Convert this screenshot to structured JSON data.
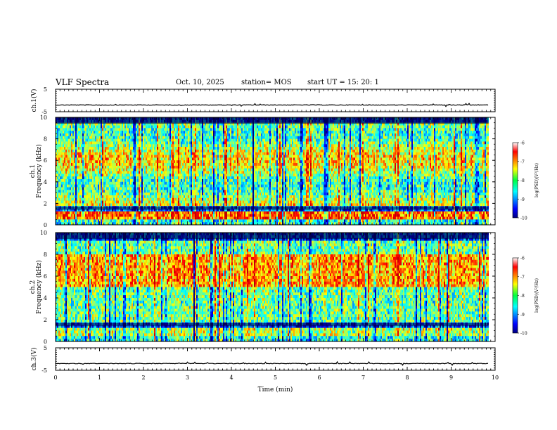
{
  "header": {
    "title": "VLF Spectra",
    "date": "Oct. 10, 2025",
    "station": "station= MOS",
    "start": "start  UT  =    15: 20: 1"
  },
  "chart_data": [
    {
      "type": "line",
      "name": "ch1-waveform",
      "ylabel": "ch.1(V)",
      "ylim": [
        -5,
        5
      ],
      "yticks": [
        "5",
        "-5"
      ],
      "baseline": -2
    },
    {
      "type": "heatmap",
      "name": "ch1-spectrogram",
      "ylabel": [
        "ch.1",
        "Frequency  (kHz)"
      ],
      "ylim": [
        0,
        10
      ],
      "yticks": [
        "0",
        "2",
        "4",
        "6",
        "8",
        "10"
      ],
      "xlim": [
        0,
        9.85
      ],
      "colorbar": {
        "label": "log(PSD)(V²/Hz)",
        "range": [
          -10,
          -6
        ],
        "ticks": [
          "-6",
          "-7",
          "-8",
          "-9",
          "-10"
        ]
      }
    },
    {
      "type": "heatmap",
      "name": "ch2-spectrogram",
      "ylabel": [
        "ch.2",
        "Frequency  (kHz)"
      ],
      "ylim": [
        0,
        10
      ],
      "yticks": [
        "0",
        "2",
        "4",
        "6",
        "8",
        "10"
      ],
      "xlim": [
        0,
        9.85
      ],
      "colorbar": {
        "label": "log(PSD)(V²/Hz)",
        "range": [
          -10,
          -6
        ],
        "ticks": [
          "-6",
          "-7",
          "-8",
          "-9",
          "-10"
        ]
      }
    },
    {
      "type": "line",
      "name": "ch3-waveform",
      "ylabel": "ch.3(V)",
      "ylim": [
        -5,
        5
      ],
      "yticks": [
        "5",
        "-5"
      ],
      "baseline": -2
    }
  ],
  "xaxis": {
    "label": "Time  (min)",
    "range": [
      0,
      10
    ],
    "ticks": [
      "0",
      "1",
      "2",
      "3",
      "4",
      "5",
      "6",
      "7",
      "8",
      "9",
      "10"
    ]
  }
}
